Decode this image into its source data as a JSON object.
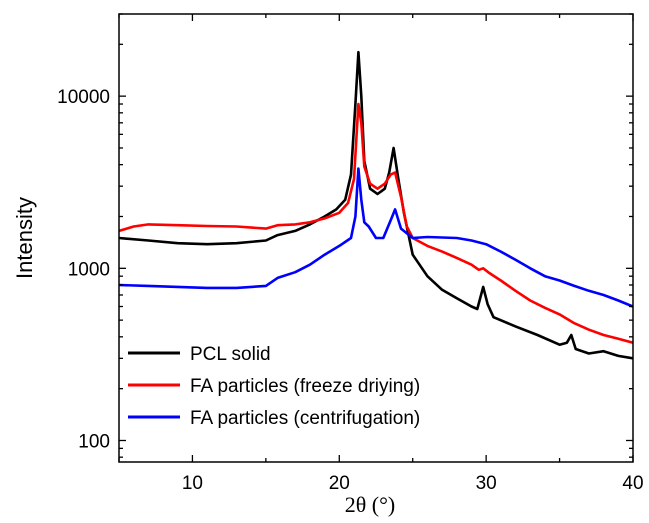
{
  "chart_data": {
    "type": "line",
    "title": "",
    "xlabel": "2θ (°)",
    "ylabel": "Intensity",
    "xlim": [
      5,
      40
    ],
    "ylim": [
      75,
      30000
    ],
    "yscale": "log",
    "x_ticks": [
      10,
      20,
      30,
      40
    ],
    "x_tick_labels": [
      "10",
      "20",
      "30",
      "40"
    ],
    "y_ticks": [
      100,
      1000,
      10000
    ],
    "y_tick_labels": [
      "100",
      "1000",
      "10000"
    ],
    "grid": false,
    "legend_position": "bottom-left",
    "series": [
      {
        "name": "PCL solid",
        "color": "#000000",
        "points": [
          [
            5,
            1500
          ],
          [
            7,
            1450
          ],
          [
            9,
            1400
          ],
          [
            11,
            1380
          ],
          [
            13,
            1400
          ],
          [
            15,
            1450
          ],
          [
            15.8,
            1560
          ],
          [
            17,
            1650
          ],
          [
            18,
            1800
          ],
          [
            19,
            2000
          ],
          [
            19.8,
            2200
          ],
          [
            20.4,
            2500
          ],
          [
            20.8,
            3500
          ],
          [
            21.1,
            9000
          ],
          [
            21.3,
            18000
          ],
          [
            21.5,
            10000
          ],
          [
            21.7,
            4200
          ],
          [
            22.1,
            2900
          ],
          [
            22.6,
            2700
          ],
          [
            23.1,
            2900
          ],
          [
            23.4,
            3600
          ],
          [
            23.7,
            5000
          ],
          [
            24.0,
            3400
          ],
          [
            24.4,
            2100
          ],
          [
            25,
            1200
          ],
          [
            26,
            900
          ],
          [
            27,
            750
          ],
          [
            28,
            670
          ],
          [
            29,
            600
          ],
          [
            29.4,
            580
          ],
          [
            29.8,
            780
          ],
          [
            30.1,
            620
          ],
          [
            30.5,
            520
          ],
          [
            32,
            460
          ],
          [
            33.5,
            410
          ],
          [
            35,
            360
          ],
          [
            35.5,
            370
          ],
          [
            35.8,
            410
          ],
          [
            36.1,
            340
          ],
          [
            37,
            320
          ],
          [
            38,
            330
          ],
          [
            39,
            310
          ],
          [
            40,
            300
          ]
        ]
      },
      {
        "name": "FA particles (freeze driying)",
        "color": "#ff0000",
        "points": [
          [
            5,
            1650
          ],
          [
            6,
            1750
          ],
          [
            7,
            1800
          ],
          [
            9,
            1780
          ],
          [
            11,
            1760
          ],
          [
            13,
            1750
          ],
          [
            15,
            1700
          ],
          [
            15.8,
            1780
          ],
          [
            17,
            1800
          ],
          [
            18,
            1850
          ],
          [
            19,
            1950
          ],
          [
            20,
            2100
          ],
          [
            20.6,
            2400
          ],
          [
            21,
            3300
          ],
          [
            21.3,
            9000
          ],
          [
            21.5,
            7000
          ],
          [
            21.7,
            3900
          ],
          [
            22.1,
            3100
          ],
          [
            22.6,
            2900
          ],
          [
            23.1,
            3100
          ],
          [
            23.5,
            3500
          ],
          [
            23.8,
            3600
          ],
          [
            24.2,
            2600
          ],
          [
            24.6,
            1750
          ],
          [
            25,
            1500
          ],
          [
            26,
            1350
          ],
          [
            27,
            1250
          ],
          [
            28,
            1150
          ],
          [
            29,
            1050
          ],
          [
            29.5,
            980
          ],
          [
            29.8,
            1000
          ],
          [
            30.2,
            940
          ],
          [
            31,
            850
          ],
          [
            32,
            740
          ],
          [
            33,
            650
          ],
          [
            34,
            590
          ],
          [
            35,
            540
          ],
          [
            36,
            480
          ],
          [
            37,
            440
          ],
          [
            38,
            410
          ],
          [
            39,
            390
          ],
          [
            40,
            370
          ]
        ]
      },
      {
        "name": "FA particles (centrifugation)",
        "color": "#0000ff",
        "points": [
          [
            5,
            800
          ],
          [
            7,
            790
          ],
          [
            9,
            780
          ],
          [
            11,
            770
          ],
          [
            13,
            770
          ],
          [
            15,
            790
          ],
          [
            15.8,
            880
          ],
          [
            17,
            950
          ],
          [
            18,
            1050
          ],
          [
            19,
            1200
          ],
          [
            20,
            1350
          ],
          [
            20.8,
            1500
          ],
          [
            21.1,
            2000
          ],
          [
            21.3,
            3800
          ],
          [
            21.5,
            2500
          ],
          [
            21.7,
            1850
          ],
          [
            22,
            1750
          ],
          [
            22.5,
            1500
          ],
          [
            23,
            1500
          ],
          [
            23.5,
            1900
          ],
          [
            23.8,
            2200
          ],
          [
            24.2,
            1700
          ],
          [
            25,
            1500
          ],
          [
            26,
            1520
          ],
          [
            27,
            1510
          ],
          [
            28,
            1500
          ],
          [
            29,
            1450
          ],
          [
            30,
            1380
          ],
          [
            31,
            1250
          ],
          [
            32,
            1120
          ],
          [
            33,
            1000
          ],
          [
            34,
            900
          ],
          [
            35,
            850
          ],
          [
            36,
            790
          ],
          [
            37,
            740
          ],
          [
            38,
            700
          ],
          [
            39,
            650
          ],
          [
            40,
            600
          ]
        ]
      }
    ]
  }
}
